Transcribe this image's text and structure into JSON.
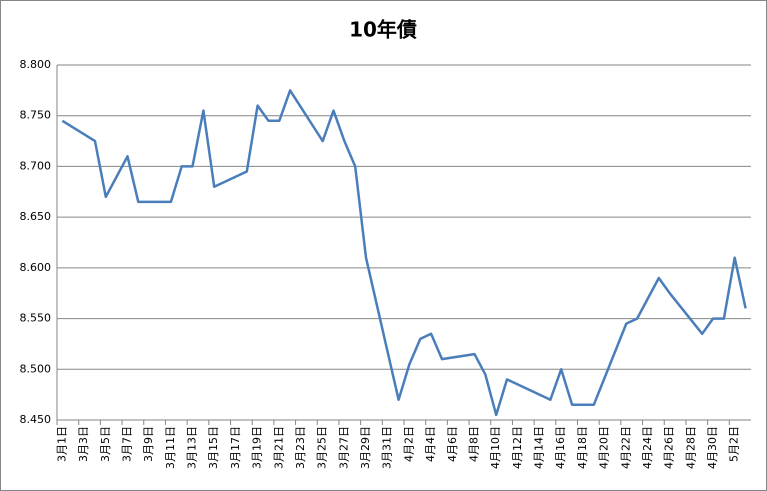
{
  "chart_data": {
    "type": "line",
    "title": "10年債",
    "x": [
      "3月1日",
      "3月4日",
      "3月5日",
      "3月7日",
      "3月8日",
      "3月11日",
      "3月12日",
      "3月13日",
      "3月14日",
      "3月15日",
      "3月18日",
      "3月19日",
      "3月20日",
      "3月21日",
      "3月22日",
      "3月25日",
      "3月26日",
      "3月27日",
      "3月28日",
      "3月29日",
      "4月1日",
      "4月2日",
      "4月3日",
      "4月4日",
      "4月5日",
      "4月8日",
      "4月9日",
      "4月10日",
      "4月11日",
      "4月15日",
      "4月16日",
      "4月17日",
      "4月19日",
      "4月22日",
      "4月23日",
      "4月25日",
      "4月26日",
      "4月29日",
      "4月30日",
      "5月1日",
      "5月2日",
      "5月3日"
    ],
    "series": [
      {
        "color": "#4a7ebb",
        "values": [
          8.745,
          8.725,
          8.67,
          8.71,
          8.665,
          8.665,
          8.7,
          8.7,
          8.755,
          8.68,
          8.695,
          8.76,
          8.745,
          8.745,
          8.775,
          8.725,
          8.755,
          8.725,
          8.7,
          8.61,
          8.47,
          8.505,
          8.53,
          8.535,
          8.51,
          8.515,
          8.495,
          8.455,
          8.49,
          8.47,
          8.5,
          8.465,
          8.465,
          8.545,
          8.55,
          8.59,
          8.575,
          8.535,
          8.55,
          8.55,
          8.61,
          8.56
        ]
      }
    ],
    "xlim": [
      "3月1日",
      "5月3日"
    ],
    "xticks": [
      "3月1日",
      "3月3日",
      "3月5日",
      "3月7日",
      "3月9日",
      "3月11日",
      "3月13日",
      "3月15日",
      "3月17日",
      "3月19日",
      "3月21日",
      "3月23日",
      "3月25日",
      "3月27日",
      "3月29日",
      "3月31日",
      "4月2日",
      "4月4日",
      "4月6日",
      "4月8日",
      "4月10日",
      "4月12日",
      "4月14日",
      "4月16日",
      "4月18日",
      "4月20日",
      "4月22日",
      "4月24日",
      "4月26日",
      "4月28日",
      "4月30日",
      "5月2日"
    ],
    "ylim": [
      8.45,
      8.8
    ],
    "yticks": [
      {
        "value": 8.45,
        "label": "8.450"
      },
      {
        "value": 8.5,
        "label": "8.500"
      },
      {
        "value": 8.55,
        "label": "8.550"
      },
      {
        "value": 8.6,
        "label": "8.600"
      },
      {
        "value": 8.65,
        "label": "8.650"
      },
      {
        "value": 8.7,
        "label": "8.700"
      },
      {
        "value": 8.75,
        "label": "8.750"
      },
      {
        "value": 8.8,
        "label": "8.800"
      }
    ],
    "grid": true
  }
}
